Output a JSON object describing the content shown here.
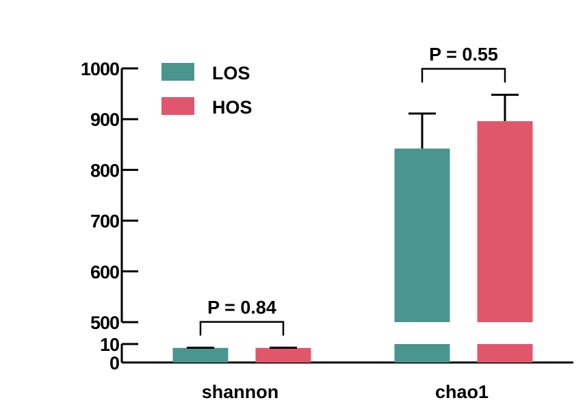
{
  "chart_data": {
    "type": "bar",
    "categories": [
      "shannon",
      "chao1"
    ],
    "series": [
      {
        "name": "LOS",
        "color": "#4A968F",
        "values": [
          7.9,
          842
        ],
        "error_upper": [
          8.0,
          911
        ]
      },
      {
        "name": "HOS",
        "color": "#E0566A",
        "values": [
          7.9,
          896
        ],
        "error_upper": [
          8.0,
          948
        ]
      }
    ],
    "y_axis": {
      "broken": true,
      "lower_segment": {
        "range": [
          0,
          10
        ],
        "ticks": [
          0,
          10
        ],
        "tick_labels": [
          "0",
          "10"
        ]
      },
      "upper_segment": {
        "range": [
          500,
          1000
        ],
        "ticks": [
          500,
          600,
          700,
          800,
          900,
          1000
        ],
        "tick_labels": [
          "500",
          "600",
          "700",
          "800",
          "900",
          "1000"
        ]
      }
    },
    "legend": {
      "placement": "top-left",
      "entries": [
        "LOS",
        "HOS"
      ]
    },
    "annotations": [
      {
        "category": "shannon",
        "text": "P = 0.84"
      },
      {
        "category": "chao1",
        "text": "P = 0.55"
      }
    ],
    "grid": false
  }
}
